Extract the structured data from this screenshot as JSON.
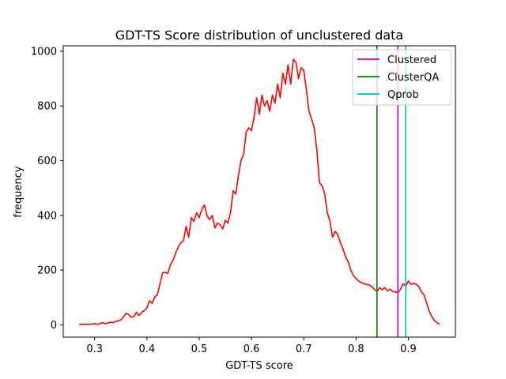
{
  "chart_data": {
    "type": "line",
    "title": "GDT-TS Score distribution of unclustered data",
    "xlabel": "GDT-TS score",
    "ylabel": "frequency",
    "xlim": [
      0.24,
      0.99
    ],
    "ylim": [
      -45,
      1020
    ],
    "xticks": [
      0.3,
      0.4,
      0.5,
      0.6,
      0.7,
      0.8,
      0.9
    ],
    "xtick_labels": [
      "0.3",
      "0.4",
      "0.5",
      "0.6",
      "0.7",
      "0.8",
      "0.9"
    ],
    "yticks": [
      0,
      200,
      400,
      600,
      800,
      1000
    ],
    "ytick_labels": [
      "0",
      "200",
      "400",
      "600",
      "800",
      "1000"
    ],
    "grid": false,
    "legend_position": "top-right",
    "series": [
      {
        "name": "",
        "color": "#ff0000",
        "x": [
          0.27,
          0.28,
          0.29,
          0.3,
          0.305,
          0.31,
          0.315,
          0.32,
          0.325,
          0.33,
          0.335,
          0.34,
          0.345,
          0.35,
          0.355,
          0.36,
          0.365,
          0.37,
          0.375,
          0.38,
          0.385,
          0.39,
          0.395,
          0.4,
          0.405,
          0.41,
          0.415,
          0.42,
          0.425,
          0.43,
          0.435,
          0.44,
          0.445,
          0.45,
          0.455,
          0.46,
          0.465,
          0.47,
          0.475,
          0.48,
          0.485,
          0.49,
          0.495,
          0.5,
          0.505,
          0.51,
          0.515,
          0.52,
          0.525,
          0.53,
          0.535,
          0.54,
          0.545,
          0.55,
          0.555,
          0.56,
          0.565,
          0.57,
          0.575,
          0.58,
          0.585,
          0.59,
          0.595,
          0.6,
          0.605,
          0.61,
          0.615,
          0.62,
          0.625,
          0.63,
          0.635,
          0.64,
          0.645,
          0.65,
          0.655,
          0.66,
          0.665,
          0.67,
          0.675,
          0.68,
          0.685,
          0.69,
          0.695,
          0.7,
          0.705,
          0.71,
          0.715,
          0.72,
          0.725,
          0.73,
          0.735,
          0.74,
          0.745,
          0.75,
          0.755,
          0.76,
          0.765,
          0.77,
          0.775,
          0.78,
          0.785,
          0.79,
          0.795,
          0.8,
          0.805,
          0.81,
          0.815,
          0.82,
          0.825,
          0.83,
          0.835,
          0.84,
          0.845,
          0.85,
          0.855,
          0.86,
          0.865,
          0.87,
          0.875,
          0.88,
          0.885,
          0.89,
          0.895,
          0.9,
          0.905,
          0.91,
          0.915,
          0.92,
          0.925,
          0.93,
          0.935,
          0.94,
          0.945,
          0.95,
          0.955,
          0.96
        ],
        "y": [
          2,
          2,
          2,
          4,
          2,
          4,
          8,
          4,
          6,
          10,
          8,
          12,
          14,
          18,
          28,
          42,
          38,
          28,
          30,
          46,
          34,
          46,
          52,
          62,
          88,
          78,
          102,
          110,
          150,
          190,
          192,
          188,
          220,
          236,
          262,
          285,
          300,
          308,
          360,
          320,
          392,
          378,
          410,
          392,
          422,
          438,
          398,
          385,
          400,
          354,
          372,
          366,
          350,
          382,
          372,
          412,
          490,
          478,
          545,
          600,
          625,
          705,
          720,
          710,
          760,
          830,
          770,
          840,
          800,
          820,
          780,
          840,
          810,
          880,
          830,
          920,
          880,
          950,
          880,
          970,
          960,
          900,
          940,
          930,
          860,
          780,
          752,
          720,
          640,
          520,
          508,
          480,
          410,
          380,
          320,
          342,
          330,
          300,
          278,
          248,
          230,
          200,
          180,
          170,
          160,
          155,
          150,
          148,
          146,
          140,
          130,
          122,
          136,
          128,
          136,
          124,
          130,
          122,
          120,
          118,
          130,
          150,
          142,
          160,
          148,
          152,
          148,
          140,
          120,
          110,
          80,
          50,
          30,
          15,
          8,
          2
        ]
      }
    ],
    "vlines": [
      {
        "name": "Clustered",
        "x": 0.88,
        "color": "#bf00bf"
      },
      {
        "name": "ClusterQA",
        "x": 0.84,
        "color": "#008000"
      },
      {
        "name": "Qprob",
        "x": 0.895,
        "color": "#00bfbf"
      }
    ]
  }
}
